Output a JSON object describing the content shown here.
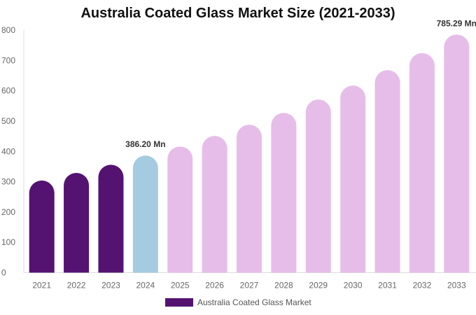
{
  "chart_data": {
    "type": "bar",
    "title": "Australia Coated Glass Market Size (2021-2033)",
    "categories": [
      "2021",
      "2022",
      "2023",
      "2024",
      "2025",
      "2026",
      "2027",
      "2028",
      "2029",
      "2030",
      "2031",
      "2032",
      "2033"
    ],
    "series": [
      {
        "name": "Australia Coated Glass Market",
        "values": [
          304,
          329,
          356,
          386.2,
          416,
          451,
          488,
          527,
          571,
          617,
          668,
          724,
          785.29
        ]
      }
    ],
    "bar_colors": [
      "#541271",
      "#541271",
      "#541271",
      "#a5cbe0",
      "#e6bde9",
      "#e6bde9",
      "#e6bde9",
      "#e6bde9",
      "#e6bde9",
      "#e6bde9",
      "#e6bde9",
      "#e6bde9",
      "#e6bde9"
    ],
    "data_labels": {
      "3": "386.20 Mn",
      "12": "785.29 Mn"
    },
    "ylim": [
      0,
      800
    ],
    "yticks": [
      0,
      100,
      200,
      300,
      400,
      500,
      600,
      700,
      800
    ],
    "xlabel": "",
    "ylabel": "",
    "grid": false,
    "legend": "bottom",
    "legend_color": "#541271"
  }
}
